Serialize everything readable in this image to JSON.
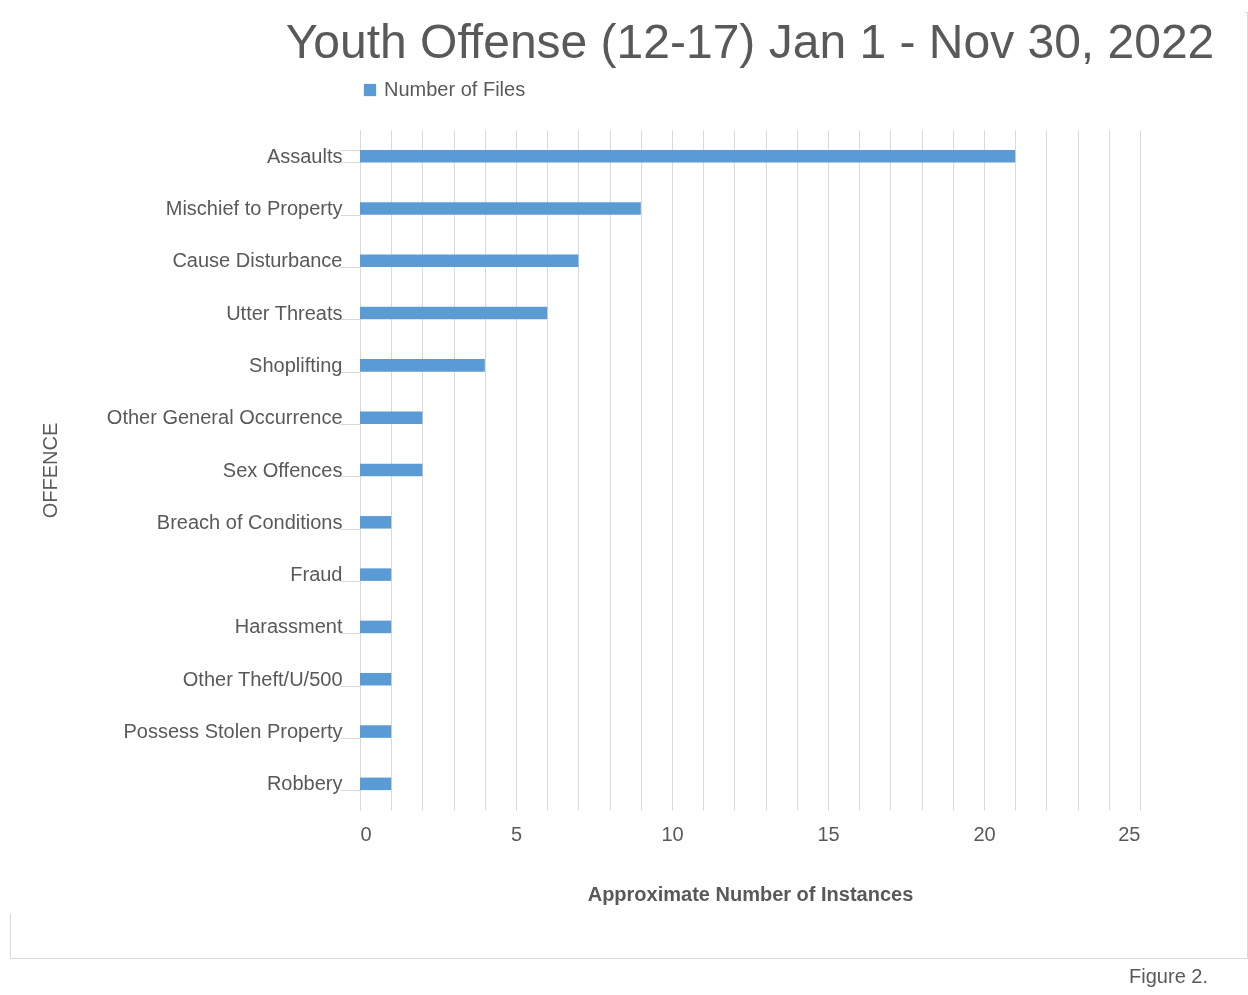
{
  "chart_data": {
    "type": "bar",
    "orientation": "horizontal",
    "title": "Youth Offense (12-17) Jan 1 - Nov 30, 2022",
    "xlabel": "Approximate Number of Instances",
    "ylabel": "OFFENCE",
    "categories": [
      "Assaults",
      "Mischief to Property",
      "Cause Disturbance",
      "Utter Threats",
      "Shoplifting",
      "Other General Occurrence",
      "Sex Offences",
      "Breach of Conditions",
      "Fraud",
      "Harassment",
      "Other Theft/U/500",
      "Possess Stolen Property",
      "Robbery"
    ],
    "series": [
      {
        "name": "Number of Files",
        "color": "#5b9bd5",
        "values": [
          21,
          9,
          7,
          6,
          4,
          2,
          2,
          1,
          1,
          1,
          1,
          1,
          1
        ]
      }
    ],
    "xlim": [
      0,
      25
    ],
    "xticks": [
      0,
      {
        "value": 1,
        "label": null
      },
      {
        "value": 2,
        "label": null
      },
      {
        "value": 3,
        "label": null
      },
      {
        "value": 4,
        "label": null
      },
      5,
      {
        "value": 6,
        "label": null
      },
      {
        "value": 7,
        "label": null
      },
      {
        "value": 8,
        "label": null
      },
      {
        "value": 9,
        "label": null
      },
      10,
      {
        "value": 11,
        "label": null
      },
      {
        "value": 12,
        "label": null
      },
      {
        "value": 13,
        "label": null
      },
      {
        "value": 14,
        "label": null
      },
      15,
      {
        "value": 16,
        "label": null
      },
      {
        "value": 17,
        "label": null
      },
      {
        "value": 18,
        "label": null
      },
      {
        "value": 19,
        "label": null
      },
      20,
      {
        "value": 21,
        "label": null
      },
      {
        "value": 22,
        "label": null
      },
      {
        "value": 23,
        "label": null
      },
      {
        "value": 24,
        "label": null
      },
      25
    ],
    "grid": "x",
    "legend": "top",
    "annotations": [
      "Figure 2."
    ]
  }
}
